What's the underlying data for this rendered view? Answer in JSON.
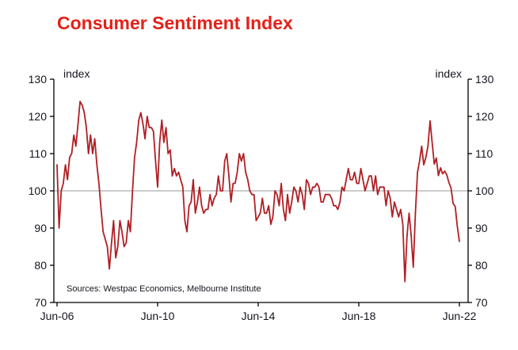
{
  "chart_data": {
    "type": "line",
    "title": "Consumer Sentiment Index",
    "ylabel_left": "index",
    "ylabel_right": "index",
    "source": "Sources: Westpac Economics, Melbourne Institute",
    "ylim": [
      70,
      130
    ],
    "yticks": [
      70,
      80,
      90,
      100,
      110,
      120,
      130
    ],
    "xticks": [
      {
        "label": "Jun-06",
        "month": 0
      },
      {
        "label": "Jun-10",
        "month": 48
      },
      {
        "label": "Jun-14",
        "month": 96
      },
      {
        "label": "Jun-18",
        "month": 144
      },
      {
        "label": "Jun-22",
        "month": 192
      }
    ],
    "x_unit": "months, Jun-2006 to Jun-2022",
    "reference_line": 100,
    "grid": "reference line at 100 only",
    "legend": "none",
    "colors": {
      "title": "#e32119",
      "line": "#b01f24",
      "reference_line": "#999999",
      "axis": "#000000",
      "text": "#15151f"
    },
    "series": [
      {
        "name": "Consumer Sentiment Index (Westpac-Melbourne Institute)",
        "values": [
          107,
          90,
          100,
          102,
          107,
          103,
          109,
          110,
          115,
          112,
          118,
          124,
          123,
          121,
          117,
          110,
          115,
          110,
          114,
          107,
          102,
          95,
          89,
          87,
          85,
          79,
          86,
          92,
          82,
          85,
          92,
          89,
          85,
          86,
          92,
          89,
          100,
          109,
          113,
          119,
          121,
          118,
          114,
          120,
          117,
          117,
          116,
          108,
          101,
          113,
          119,
          113,
          117,
          110,
          111,
          104,
          106,
          104,
          105,
          103,
          101,
          92,
          89,
          96,
          97,
          103,
          94,
          97,
          101,
          96,
          94,
          95,
          95,
          99,
          96,
          98,
          99,
          104,
          100,
          100,
          108,
          110,
          104,
          97,
          102,
          102,
          105,
          110,
          108,
          110,
          105,
          103,
          100,
          99,
          99,
          92,
          93,
          94,
          98,
          94,
          94,
          96,
          91,
          93,
          100,
          99,
          96,
          102,
          95,
          92,
          99,
          94,
          97,
          101,
          100,
          97,
          101,
          99,
          95,
          103,
          102,
          99,
          101,
          101,
          102,
          101,
          97,
          97,
          99,
          99,
          99,
          98,
          96,
          96,
          95,
          97,
          101,
          100,
          103,
          106,
          103,
          103,
          105,
          102,
          102,
          106,
          103,
          100,
          102,
          104,
          104,
          100,
          104,
          99,
          101,
          101,
          101,
          96,
          100,
          98,
          93,
          97,
          95,
          93,
          95,
          91,
          75.6,
          88,
          94,
          88,
          79.5,
          93.8,
          105,
          108,
          112,
          107,
          109,
          112,
          118.8,
          113,
          107.2,
          108.8,
          104.1,
          106.2,
          104.6,
          105.3,
          104.3,
          102.2,
          100.8,
          96.6,
          95.8,
          90.4,
          86.4
        ]
      }
    ]
  }
}
